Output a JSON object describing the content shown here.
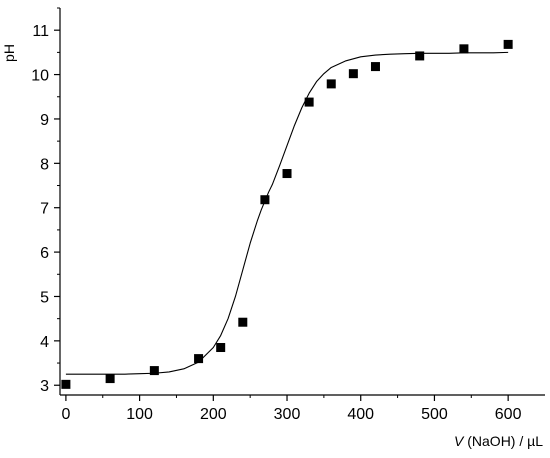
{
  "chart_data": {
    "type": "scatter",
    "title": "",
    "xlabel_var": "V",
    "xlabel_rest": " (NaOH) / µL",
    "ylabel": "pH",
    "xlim": [
      -8,
      650
    ],
    "ylim": [
      2.78,
      11.5
    ],
    "x_ticks": [
      0,
      100,
      200,
      300,
      400,
      500,
      600
    ],
    "y_ticks": [
      3,
      4,
      5,
      6,
      7,
      8,
      9,
      10,
      11
    ],
    "grid": false,
    "legend": "none",
    "colors": {
      "marker": "#000000",
      "fit_line": "#000000",
      "axis": "#000000"
    },
    "series": [
      {
        "kind": "points",
        "x": [
          0,
          60,
          120,
          180,
          210,
          240,
          270,
          300,
          330,
          360,
          390,
          420,
          480,
          540,
          600
        ],
        "y": [
          3.02,
          3.15,
          3.33,
          3.6,
          3.85,
          4.42,
          7.18,
          7.77,
          9.38,
          9.79,
          10.02,
          10.18,
          10.42,
          10.58,
          10.68
        ]
      },
      {
        "kind": "fit",
        "x": [
          0,
          20,
          40,
          60,
          80,
          100,
          120,
          140,
          160,
          180,
          200,
          210,
          220,
          230,
          240,
          250,
          260,
          265,
          270,
          275,
          280,
          290,
          300,
          310,
          320,
          330,
          340,
          350,
          360,
          380,
          400,
          420,
          440,
          460,
          480,
          500,
          520,
          540,
          560,
          580,
          600
        ],
        "y": [
          3.25,
          3.25,
          3.25,
          3.25,
          3.25,
          3.26,
          3.27,
          3.3,
          3.37,
          3.52,
          3.85,
          4.12,
          4.5,
          5.0,
          5.6,
          6.2,
          6.72,
          6.95,
          7.15,
          7.35,
          7.52,
          7.95,
          8.4,
          8.85,
          9.25,
          9.58,
          9.84,
          10.02,
          10.16,
          10.31,
          10.4,
          10.44,
          10.46,
          10.47,
          10.48,
          10.48,
          10.48,
          10.49,
          10.49,
          10.49,
          10.5
        ]
      }
    ]
  }
}
